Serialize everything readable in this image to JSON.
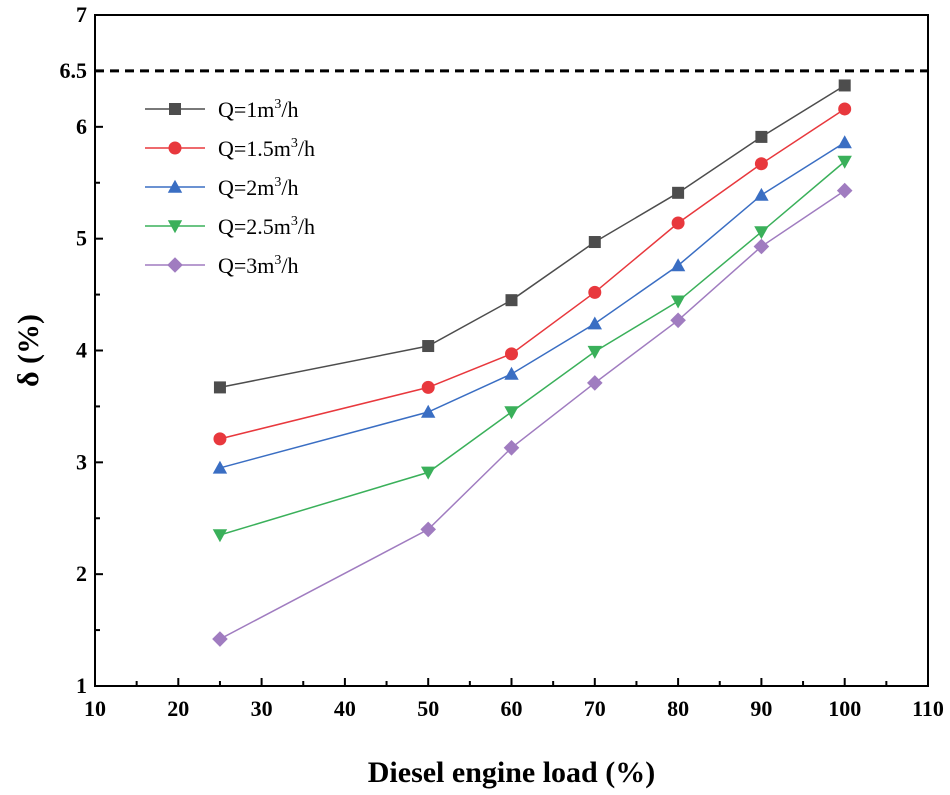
{
  "chart_data": {
    "type": "line",
    "xlabel": "Diesel engine load (%)",
    "ylabel": "δ (%)",
    "xlim": [
      10,
      110
    ],
    "ylim": [
      1,
      7
    ],
    "x_ticks": [
      "10",
      "20",
      "30",
      "40",
      "50",
      "60",
      "70",
      "80",
      "90",
      "100",
      "110"
    ],
    "y_ticks": [
      "1",
      "2",
      "3",
      "4",
      "5",
      "6",
      "6.5",
      "7"
    ],
    "reference_line": {
      "y": 6.5,
      "style": "dashed",
      "color": "#000000"
    },
    "x": [
      25,
      50,
      60,
      70,
      80,
      90,
      100
    ],
    "series": [
      {
        "name": "Q=1m³/h",
        "prefix": "Q=1m",
        "sup": "3",
        "suffix": "/h",
        "color": "#4d4d4d",
        "marker": "square",
        "values": [
          3.67,
          4.04,
          4.45,
          4.97,
          5.41,
          5.91,
          6.37
        ]
      },
      {
        "name": "Q=1.5m³/h",
        "prefix": "Q=1.5m",
        "sup": "3",
        "suffix": "/h",
        "color": "#e8383d",
        "marker": "circle",
        "values": [
          3.21,
          3.67,
          3.97,
          4.52,
          5.14,
          5.67,
          6.16
        ]
      },
      {
        "name": "Q=2m³/h",
        "prefix": "Q=2m",
        "sup": "3",
        "suffix": "/h",
        "color": "#3a6ec3",
        "marker": "triangle-up",
        "values": [
          2.95,
          3.45,
          3.79,
          4.24,
          4.76,
          5.39,
          5.86
        ]
      },
      {
        "name": "Q=2.5m³/h",
        "prefix": "Q=2.5m",
        "sup": "3",
        "suffix": "/h",
        "color": "#3ab05a",
        "marker": "triangle-down",
        "values": [
          2.35,
          2.91,
          3.45,
          3.99,
          4.44,
          5.06,
          5.69
        ]
      },
      {
        "name": "Q=3m³/h",
        "prefix": "Q=3m",
        "sup": "3",
        "suffix": "/h",
        "color": "#a07cc0",
        "marker": "diamond",
        "values": [
          1.42,
          2.4,
          3.13,
          3.71,
          4.27,
          4.93,
          5.43
        ]
      }
    ],
    "legend_position": "top-left"
  }
}
